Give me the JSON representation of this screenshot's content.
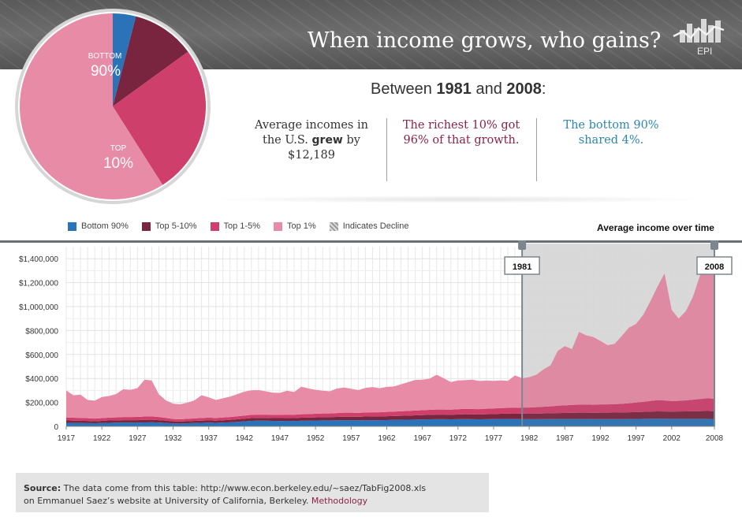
{
  "header": {
    "title": "When income grows, who gains?",
    "logo_text": "EPI"
  },
  "pie": {
    "slices": [
      {
        "name": "BOTTOM",
        "value": 4,
        "color": "#2a73b8"
      },
      {
        "name": "Top 5-10%",
        "value": 11,
        "color": "#7a2540"
      },
      {
        "name": "Top 1-5%",
        "value": 26,
        "color": "#cf3f6c"
      },
      {
        "name": "Top 1%",
        "value": 59,
        "color": "#e88ba6"
      }
    ],
    "label_bottom": "BOTTOM",
    "value_bottom": "90%",
    "label_top": "TOP",
    "value_top": "10%"
  },
  "summary": {
    "prefix": "Between ",
    "year_start": "1981",
    "conj": " and ",
    "year_end": "2008",
    "suffix": ":",
    "col1_a": "Average incomes in",
    "col1_b_pre": "the U.S. ",
    "col1_b_bold": "grew",
    "col1_b_post": " by",
    "col1_c": "$12,189",
    "col2_a": "The richest 10% got",
    "col2_b": "96% of that growth.",
    "col3_a": "The bottom 90%",
    "col3_b": "shared 4%."
  },
  "legend": [
    {
      "label": "Bottom 90%",
      "color": "#2a73b8"
    },
    {
      "label": "Top 5-10%",
      "color": "#7a2540"
    },
    {
      "label": "Top 1-5%",
      "color": "#cf3f6c"
    },
    {
      "label": "Top 1%",
      "color": "#e88ba6"
    },
    {
      "label": "Indicates Decline",
      "color": "#aaaaaa"
    }
  ],
  "chart_title": "Average income over time",
  "chart_data": {
    "type": "area",
    "stacked": true,
    "title": "Average income over time",
    "xlim": [
      1917,
      2008
    ],
    "ylim": [
      0,
      1500000
    ],
    "x_ticks": [
      "1917",
      "1922",
      "1927",
      "1932",
      "1937",
      "1942",
      "1947",
      "1952",
      "1957",
      "1962",
      "1967",
      "1972",
      "1977",
      "1982",
      "1987",
      "1992",
      "1997",
      "2002",
      "2008"
    ],
    "x_tick_values": [
      1917,
      1922,
      1927,
      1932,
      1937,
      1942,
      1947,
      1952,
      1957,
      1962,
      1967,
      1972,
      1977,
      1982,
      1987,
      1992,
      1997,
      2002,
      2008
    ],
    "y_ticks": [
      {
        "value": 0,
        "label": "0"
      },
      {
        "value": 200000,
        "label": "$200,000"
      },
      {
        "value": 400000,
        "label": "$400,000"
      },
      {
        "value": 600000,
        "label": "$600,000"
      },
      {
        "value": 800000,
        "label": "$800,000"
      },
      {
        "value": 1000000,
        "label": "$1,000,000"
      },
      {
        "value": 1200000,
        "label": "$1,200,000"
      },
      {
        "value": 1400000,
        "label": "$1,400,000"
      }
    ],
    "highlight": {
      "start": 1981,
      "end": 2008,
      "start_label": "1981",
      "end_label": "2008"
    },
    "years": [
      1917,
      1918,
      1919,
      1920,
      1921,
      1922,
      1923,
      1924,
      1925,
      1926,
      1927,
      1928,
      1929,
      1930,
      1931,
      1932,
      1933,
      1934,
      1935,
      1936,
      1937,
      1938,
      1939,
      1940,
      1941,
      1942,
      1943,
      1944,
      1945,
      1946,
      1947,
      1948,
      1949,
      1950,
      1951,
      1952,
      1953,
      1954,
      1955,
      1956,
      1957,
      1958,
      1959,
      1960,
      1961,
      1962,
      1963,
      1964,
      1965,
      1966,
      1967,
      1968,
      1969,
      1970,
      1971,
      1972,
      1973,
      1974,
      1975,
      1976,
      1977,
      1978,
      1979,
      1980,
      1981,
      1982,
      1983,
      1984,
      1985,
      1986,
      1987,
      1988,
      1989,
      1990,
      1991,
      1992,
      1993,
      1994,
      1995,
      1996,
      1997,
      1998,
      1999,
      2000,
      2001,
      2002,
      2003,
      2004,
      2005,
      2006,
      2007,
      2008
    ],
    "series": [
      {
        "name": "Bottom 90%",
        "color": "#2a73b8",
        "values": [
          30000,
          29000,
          28000,
          27000,
          26000,
          28000,
          30000,
          31000,
          32000,
          32000,
          32000,
          33000,
          34000,
          32000,
          29000,
          25000,
          24000,
          26000,
          28000,
          30000,
          31000,
          30000,
          32000,
          34000,
          38000,
          42000,
          46000,
          48000,
          48000,
          46000,
          45000,
          46000,
          45000,
          47000,
          48000,
          49000,
          50000,
          50000,
          51000,
          52000,
          52000,
          51000,
          52000,
          52000,
          52000,
          53000,
          54000,
          55000,
          56000,
          57000,
          58000,
          59000,
          60000,
          60000,
          59000,
          60000,
          61000,
          60000,
          59000,
          60000,
          61000,
          62000,
          62000,
          61000,
          61000,
          60000,
          60000,
          61000,
          61000,
          62000,
          62000,
          62000,
          62000,
          62000,
          61000,
          61000,
          61000,
          61000,
          61000,
          62000,
          62000,
          63000,
          64000,
          65000,
          64000,
          63000,
          63000,
          63000,
          63000,
          63000,
          63000,
          62000
        ]
      },
      {
        "name": "Top 5-10%",
        "color": "#7a2540",
        "values": [
          20000,
          19000,
          19000,
          18000,
          17000,
          18000,
          19000,
          19000,
          20000,
          20000,
          20000,
          21000,
          21000,
          20000,
          19000,
          17000,
          16000,
          17000,
          18000,
          18000,
          19000,
          18000,
          19000,
          20000,
          21000,
          22000,
          23000,
          23000,
          23000,
          23000,
          24000,
          24000,
          24000,
          25000,
          25000,
          26000,
          27000,
          27000,
          28000,
          29000,
          29000,
          29000,
          30000,
          31000,
          31000,
          32000,
          32000,
          33000,
          34000,
          35000,
          36000,
          37000,
          38000,
          38000,
          38000,
          39000,
          40000,
          40000,
          40000,
          41000,
          42000,
          43000,
          44000,
          44000,
          45000,
          45000,
          46000,
          47000,
          48000,
          49000,
          50000,
          51000,
          52000,
          52000,
          52000,
          53000,
          53000,
          54000,
          55000,
          56000,
          57000,
          58000,
          59000,
          60000,
          60000,
          60000,
          61000,
          62000,
          63000,
          64000,
          65000,
          65000
        ]
      },
      {
        "name": "Top 1-5%",
        "color": "#cf3f6c",
        "values": [
          25000,
          24000,
          24000,
          23000,
          22000,
          23000,
          24000,
          25000,
          26000,
          26000,
          27000,
          28000,
          28000,
          26000,
          23000,
          20000,
          19000,
          20000,
          21000,
          22000,
          23000,
          22000,
          23000,
          24000,
          25000,
          26000,
          27000,
          27000,
          27000,
          27000,
          28000,
          28000,
          28000,
          29000,
          29000,
          30000,
          31000,
          31000,
          32000,
          33000,
          33000,
          33000,
          34000,
          35000,
          35000,
          36000,
          37000,
          38000,
          39000,
          40000,
          41000,
          42000,
          43000,
          43000,
          43000,
          44000,
          45000,
          45000,
          45000,
          46000,
          47000,
          48000,
          49000,
          50000,
          51000,
          52000,
          54000,
          56000,
          58000,
          62000,
          63000,
          66000,
          67000,
          68000,
          67000,
          69000,
          69000,
          70000,
          72000,
          75000,
          80000,
          84000,
          89000,
          94000,
          92000,
          88000,
          89000,
          92000,
          97000,
          102000,
          107000,
          103000
        ]
      },
      {
        "name": "Top 1%",
        "color": "#e88ba6",
        "values": [
          225000,
          188000,
          194000,
          152000,
          150000,
          176000,
          180000,
          195000,
          232000,
          227000,
          240000,
          308000,
          300000,
          190000,
          145000,
          128000,
          125000,
          135000,
          150000,
          190000,
          170000,
          150000,
          160000,
          170000,
          185000,
          200000,
          205000,
          205000,
          195000,
          185000,
          183000,
          200000,
          190000,
          230000,
          215000,
          200000,
          190000,
          185000,
          205000,
          210000,
          200000,
          190000,
          205000,
          210000,
          200000,
          209000,
          210000,
          225000,
          240000,
          255000,
          255000,
          260000,
          290000,
          260000,
          230000,
          240000,
          240000,
          245000,
          235000,
          235000,
          230000,
          230000,
          225000,
          270000,
          245000,
          253000,
          271000,
          311000,
          343000,
          456000,
          495000,
          466000,
          608000,
          578000,
          566000,
          530000,
          495000,
          504000,
          567000,
          631000,
          656000,
          725000,
          831000,
          946000,
          1060000,
          762000,
          687000,
          746000,
          861000,
          1035000,
          1118000,
          1190000
        ]
      }
    ]
  },
  "source": {
    "label": "Source:",
    "line1": " The data come from this table: http://www.econ.berkeley.edu/~saez/TabFig2008.xls",
    "line2": "on Emmanuel Saez’s website at University of California, Berkeley. ",
    "link": "Methodology"
  }
}
